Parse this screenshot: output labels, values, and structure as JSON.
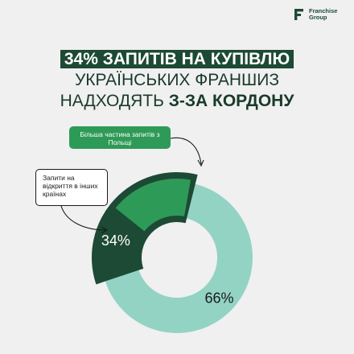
{
  "brand": {
    "logo_text_line1": "Franchise",
    "logo_text_line2": "Group",
    "colors": {
      "dark_green": "#1d4a35",
      "medium_green": "#2e9a57",
      "mint": "#93d3c4"
    }
  },
  "title": {
    "line1": "34% ЗАПИТІВ НА КУПІВЛЮ",
    "line2": "УКРАЇНСЬКИХ ФРАНШИЗ",
    "line3_plain": "НАДХОДЯТЬ ",
    "line3_bold": "З-ЗА КОРДОНУ"
  },
  "callouts": {
    "poland": "Більша частина запитів з Польщі",
    "other": "Запити на відкриття в інших країнах"
  },
  "chart_data": {
    "type": "pie",
    "donut": true,
    "labels": [
      "34%",
      "66%"
    ],
    "values": [
      34,
      66
    ],
    "sub_segment": {
      "of": "34%",
      "share_of_total": 17
    },
    "colors": [
      "#1d4a35",
      "#93d3c4",
      "#2e9a57"
    ]
  }
}
